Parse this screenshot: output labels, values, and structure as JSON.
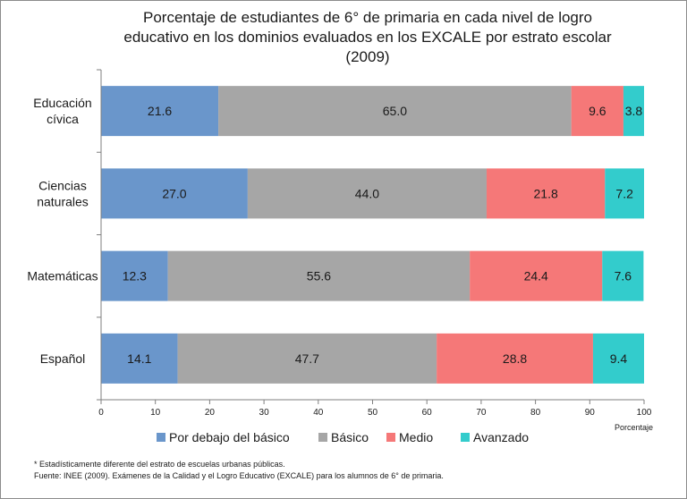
{
  "title_lines": [
    "Porcentaje de estudiantes de 6° de primaria en cada nivel de logro",
    "educativo en los dominios evaluados en los EXCALE por estrato escolar",
    "(2009)"
  ],
  "footnotes": {
    "note": "* Estadísticamente diferente del estrato de escuelas urbanas públicas.",
    "source": "Fuente: INEE (2009). Exámenes de la Calidad y el Logro Educativo (EXCALE) para los alumnos de 6° de primaria."
  },
  "chart_data": {
    "type": "bar",
    "orientation": "horizontal",
    "stacked": true,
    "title": "Porcentaje de estudiantes de 6° de primaria en cada nivel de logro educativo en los dominios evaluados en los EXCALE por estrato escolar (2009)",
    "xlabel": "Porcentaje",
    "ylabel": "",
    "xlim": [
      0,
      100
    ],
    "xticks": [
      0,
      10,
      20,
      30,
      40,
      50,
      60,
      70,
      80,
      90,
      100
    ],
    "grid": false,
    "legend_position": "bottom",
    "categories": [
      [
        "Educación",
        "cívica"
      ],
      [
        "Ciencias",
        "naturales"
      ],
      [
        "Matemáticas"
      ],
      [
        "Español"
      ]
    ],
    "series": [
      {
        "name": "Por debajo del básico",
        "color": "#6a96cb",
        "values": [
          21.6,
          27.0,
          12.3,
          14.1
        ]
      },
      {
        "name": "Básico",
        "color": "#a6a6a6",
        "values": [
          65.0,
          44.0,
          55.6,
          47.7
        ]
      },
      {
        "name": "Medio",
        "color": "#f57878",
        "values": [
          9.6,
          21.8,
          24.4,
          28.8
        ]
      },
      {
        "name": "Avanzado",
        "color": "#33cccc",
        "values": [
          3.8,
          7.2,
          7.6,
          9.4
        ]
      }
    ]
  }
}
